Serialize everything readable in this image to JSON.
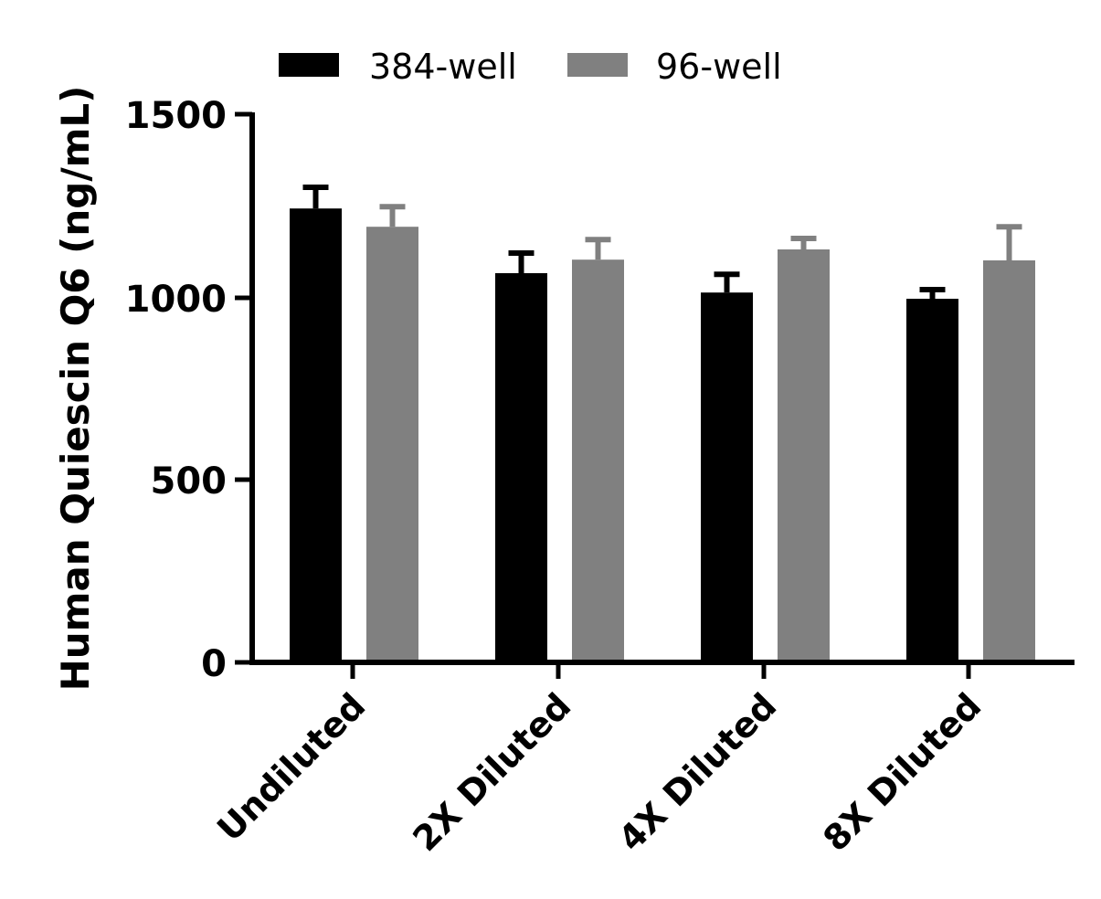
{
  "chart_data": {
    "type": "bar",
    "title": "",
    "xlabel": "",
    "ylabel": "Human Quiescin Q6 (ng/mL)",
    "ylim": [
      0,
      1500
    ],
    "yticks": [
      0,
      500,
      1000,
      1500
    ],
    "grid": false,
    "legend_position": "top",
    "categories": [
      "Undiluted",
      "2X Diluted",
      "4X Diluted",
      "8X Diluted"
    ],
    "series": [
      {
        "name": "384-well",
        "color": "#000000",
        "values": [
          1242,
          1065,
          1012,
          995
        ],
        "error_upper": [
          1300,
          1120,
          1062,
          1020
        ]
      },
      {
        "name": "96-well",
        "color": "#808080",
        "values": [
          1192,
          1102,
          1130,
          1100
        ],
        "error_upper": [
          1247,
          1157,
          1160,
          1192
        ]
      }
    ]
  },
  "legend": {
    "items": [
      {
        "label": "384-well",
        "color": "#000000"
      },
      {
        "label": "96-well",
        "color": "#808080"
      }
    ]
  },
  "axes": {
    "y_label": "Human Quiescin Q6 (ng/mL)",
    "y_tick_labels": [
      "0",
      "500",
      "1000",
      "1500"
    ],
    "x_tick_labels": [
      "Undiluted",
      "2X Diluted",
      "4X Diluted",
      "8X Diluted"
    ]
  }
}
